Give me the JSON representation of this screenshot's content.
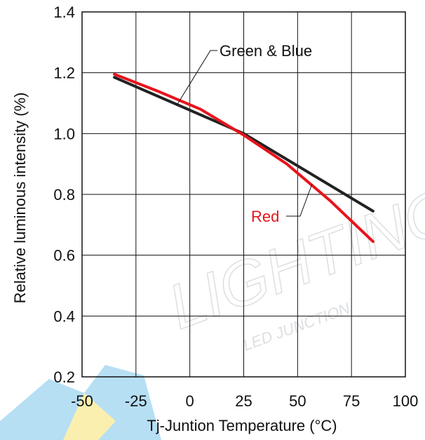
{
  "chart_data": {
    "type": "line",
    "xlabel": "Tj-Juntion Temperature (°C)",
    "ylabel": "Relative luminous intensity (%)",
    "xlim": [
      -50,
      100
    ],
    "ylim": [
      0.2,
      1.4
    ],
    "xticks": [
      "-50",
      "-25",
      "0",
      "25",
      "50",
      "75",
      "100"
    ],
    "yticks": [
      "0.2",
      "0.4",
      "0.6",
      "0.8",
      "1.0",
      "1.2",
      "1.4"
    ],
    "xtick_values": [
      -50,
      -25,
      0,
      25,
      50,
      75,
      100
    ],
    "ytick_values": [
      0.2,
      0.4,
      0.6,
      0.8,
      1.0,
      1.2,
      1.4
    ],
    "grid": true,
    "series": [
      {
        "name": "Green & Blue",
        "color": "#222222",
        "x": [
          -35,
          25,
          85
        ],
        "y": [
          1.185,
          1.0,
          0.745
        ]
      },
      {
        "name": "Red",
        "color": "#e8131b",
        "x": [
          -35,
          -15,
          5,
          25,
          45,
          65,
          85
        ],
        "y": [
          1.195,
          1.14,
          1.08,
          0.995,
          0.9,
          0.78,
          0.645
        ]
      }
    ],
    "annotations": [
      {
        "text": "Green & Blue",
        "color": "#222222"
      },
      {
        "text": "Red",
        "color": "#e8131b"
      }
    ]
  },
  "watermark": {
    "text": "LIGHTING",
    "subtext": "LED JUNCTION",
    "color": "#2ea3df"
  }
}
